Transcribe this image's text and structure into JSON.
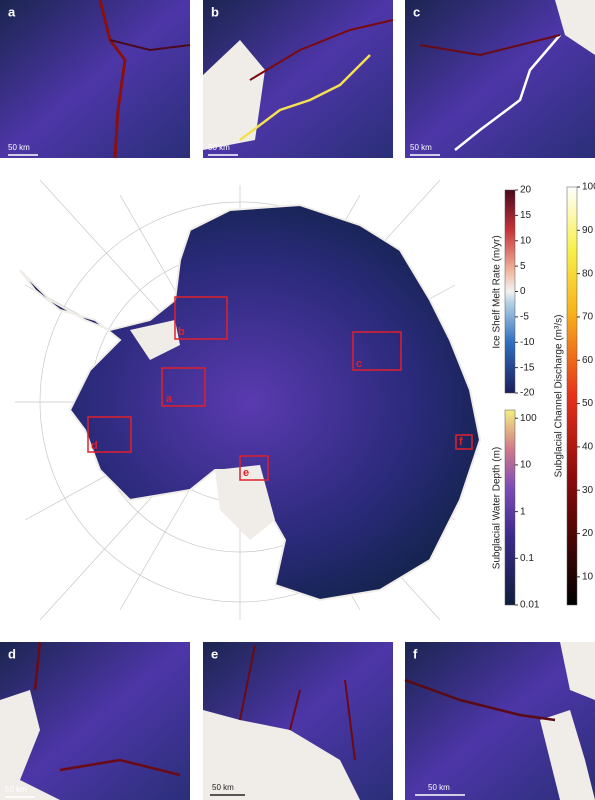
{
  "panels": [
    {
      "label": "a",
      "scale": "50 km"
    },
    {
      "label": "b",
      "scale": "50 km"
    },
    {
      "label": "c",
      "scale": "50 km"
    },
    {
      "label": "d",
      "scale": "50 km"
    },
    {
      "label": "e",
      "scale": "50 km"
    },
    {
      "label": "f",
      "scale": "50 km"
    }
  ],
  "map_boxes": [
    {
      "label": "a"
    },
    {
      "label": "b"
    },
    {
      "label": "c"
    },
    {
      "label": "d"
    },
    {
      "label": "e"
    },
    {
      "label": "f"
    }
  ],
  "colorbars": [
    {
      "title": "Ice Shelf Melt Rate (m/yr)",
      "ylim": [
        -20,
        20
      ],
      "yticks": [
        20,
        15,
        10,
        5,
        0,
        -5,
        -10,
        -15,
        -20
      ]
    },
    {
      "title": "Subglacial Water Depth (m)",
      "log": true,
      "ylim": [
        0.01,
        150
      ],
      "yticks": [
        100,
        10,
        1,
        0.1,
        0.01
      ]
    },
    {
      "title": "Subglacial Channel Discharge (m³/s)",
      "ylim": [
        3.5,
        100
      ],
      "yticks": [
        100,
        90,
        80,
        70,
        60,
        50,
        40,
        30,
        20,
        10
      ]
    }
  ]
}
